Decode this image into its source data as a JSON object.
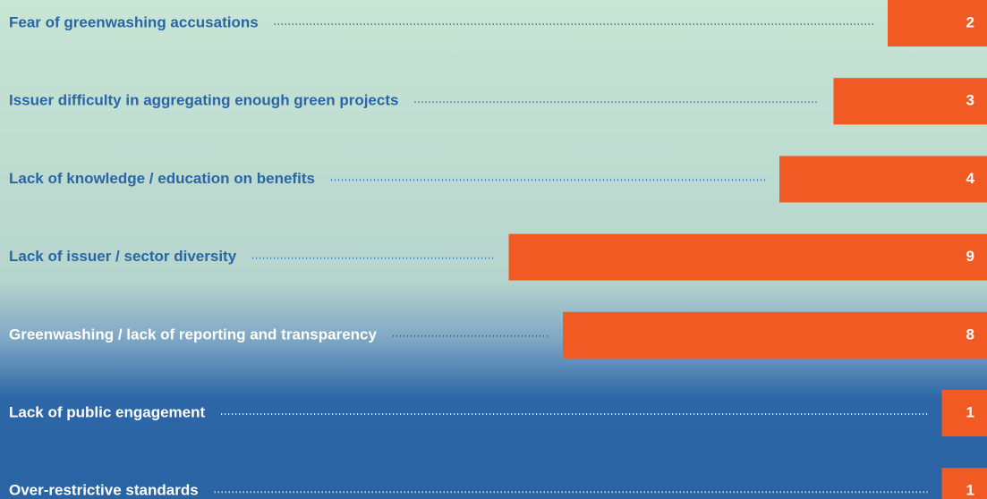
{
  "chart_data": {
    "type": "bar",
    "categories": [
      "Fear of greenwashing accusations",
      "Issuer difficulty in aggregating enough green projects",
      "Lack of knowledge / education on benefits",
      "Lack of issuer  / sector diversity",
      "Greenwashing / lack of reporting and transparency",
      "Lack of public engagement",
      "Over-restrictive standards"
    ],
    "values": [
      2,
      3,
      4,
      9,
      8,
      1,
      1
    ],
    "color": "#f15a22"
  }
}
